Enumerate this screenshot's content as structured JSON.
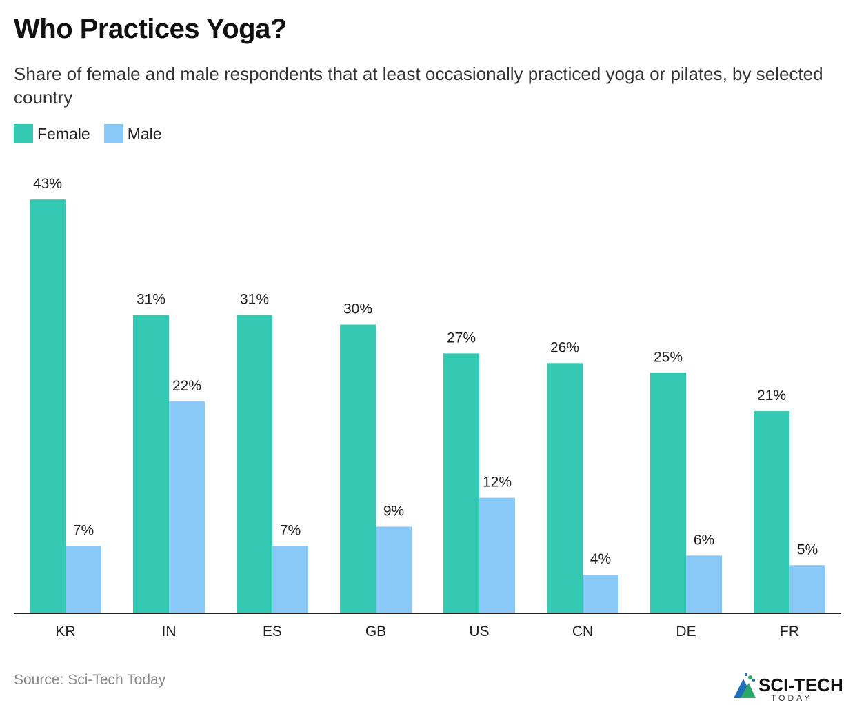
{
  "title": "Who Practices Yoga?",
  "subtitle": "Share of female and male respondents that at least occasionally practiced yoga or pilates, by selected country",
  "source": "Source: Sci-Tech Today",
  "logo": {
    "line1": "SCI-TECH",
    "line2": "TODAY"
  },
  "colors": {
    "female": "#34C9B3",
    "male": "#89C7F7",
    "axis": "#222222",
    "label": "#222222"
  },
  "chart_data": {
    "type": "bar",
    "title": "Who Practices Yoga?",
    "xlabel": "",
    "ylabel": "",
    "ylim": [
      0,
      45
    ],
    "grid": false,
    "legend_position": "top-left",
    "categories": [
      "KR",
      "IN",
      "ES",
      "GB",
      "US",
      "CN",
      "DE",
      "FR"
    ],
    "series": [
      {
        "name": "Female",
        "values": [
          43,
          31,
          31,
          30,
          27,
          26,
          25,
          21
        ]
      },
      {
        "name": "Male",
        "values": [
          7,
          22,
          7,
          9,
          12,
          4,
          6,
          5
        ]
      }
    ],
    "value_suffix": "%"
  }
}
